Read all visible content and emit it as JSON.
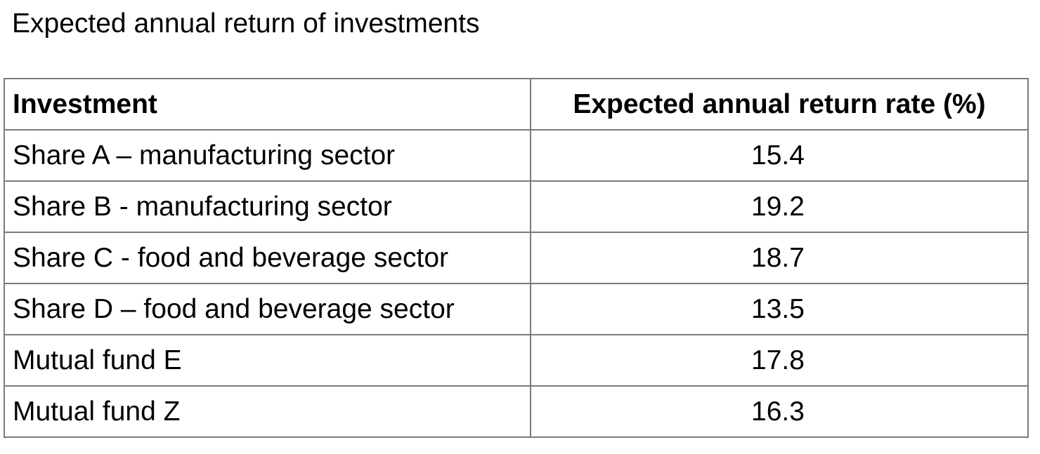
{
  "title": "Expected annual return of investments",
  "table": {
    "headers": [
      "Investment",
      "Expected annual return rate (%)"
    ],
    "rows": [
      {
        "investment": "Share A – manufacturing sector",
        "rate": "15.4"
      },
      {
        "investment": "Share B - manufacturing sector",
        "rate": "19.2"
      },
      {
        "investment": "Share C - food and beverage sector",
        "rate": "18.7"
      },
      {
        "investment": "Share D – food and beverage sector",
        "rate": "13.5"
      },
      {
        "investment": "Mutual fund E",
        "rate": "17.8"
      },
      {
        "investment": "Mutual fund Z",
        "rate": "16.3"
      }
    ]
  }
}
